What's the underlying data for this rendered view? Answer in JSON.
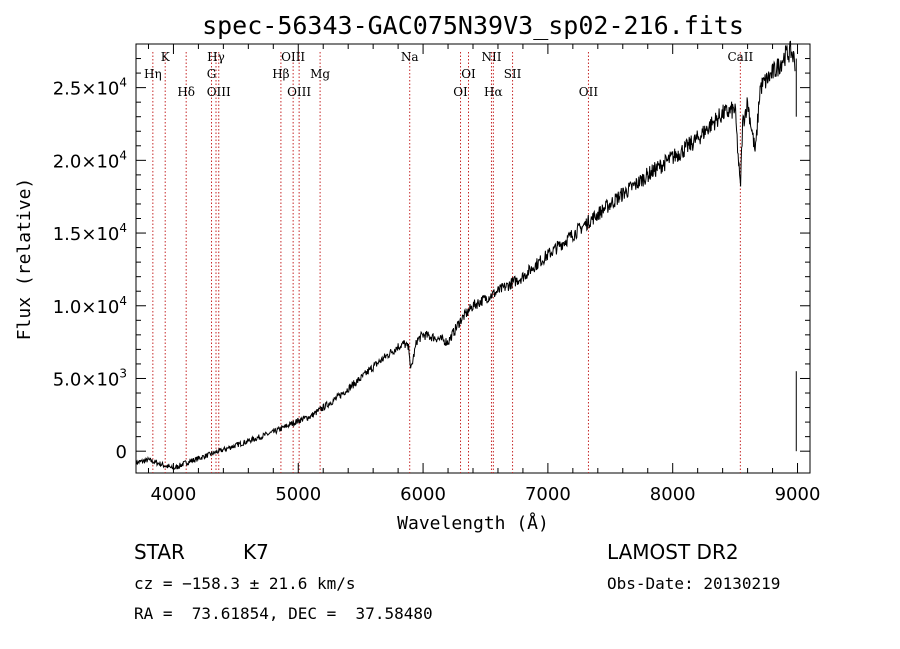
{
  "chart_data": {
    "type": "line",
    "title": "spec-56343-GAC075N39V3_sp02-216.fits",
    "xlabel": "Wavelength (Å)",
    "ylabel": "Flux (relative)",
    "xlim": [
      3700,
      9100
    ],
    "ylim": [
      -1500,
      28000
    ],
    "xticks": [
      4000,
      5000,
      6000,
      7000,
      8000,
      9000
    ],
    "xtick_labels": [
      "4000",
      "5000",
      "6000",
      "7000",
      "8000",
      "9000"
    ],
    "yticks": [
      {
        "value": 0,
        "mant": "0",
        "exp": ""
      },
      {
        "value": 5000,
        "mant": "5.0×10",
        "exp": "3"
      },
      {
        "value": 10000,
        "mant": "1.0×10",
        "exp": "4"
      },
      {
        "value": 15000,
        "mant": "1.5×10",
        "exp": "4"
      },
      {
        "value": 20000,
        "mant": "2.0×10",
        "exp": "4"
      },
      {
        "value": 25000,
        "mant": "2.5×10",
        "exp": "4"
      }
    ],
    "series": [
      {
        "x": [
          3700,
          3800,
          3900,
          4000,
          4100,
          4200,
          4300,
          4400,
          4500,
          4600,
          4700,
          4800,
          4900,
          5000,
          5100,
          5200,
          5300,
          5400,
          5500,
          5600,
          5700,
          5800,
          5850,
          5890,
          5900,
          5950,
          6000,
          6100,
          6200,
          6300,
          6400,
          6500,
          6600,
          6700,
          6800,
          6900,
          7000,
          7100,
          7200,
          7300,
          7400,
          7500,
          7600,
          7700,
          7800,
          7900,
          8000,
          8100,
          8200,
          8300,
          8400,
          8500,
          8542,
          8560,
          8600,
          8662,
          8700,
          8800,
          8850,
          8900,
          8950,
          8980
        ],
        "y": [
          -800,
          -600,
          -900,
          -1200,
          -800,
          -500,
          -200,
          100,
          400,
          700,
          1000,
          1300,
          1700,
          2100,
          2400,
          3000,
          3600,
          4300,
          5000,
          5800,
          6500,
          7200,
          7400,
          7000,
          5500,
          7600,
          8000,
          7800,
          7500,
          9000,
          10000,
          10500,
          11000,
          11500,
          12000,
          12800,
          13500,
          14200,
          14900,
          15600,
          16300,
          17000,
          17700,
          18300,
          19000,
          19600,
          20200,
          20800,
          21500,
          22400,
          23200,
          23500,
          18000,
          22500,
          24000,
          20500,
          25000,
          26000,
          26500,
          27200,
          27500,
          26800
        ]
      }
    ],
    "lines": [
      {
        "name": "Hη",
        "x": 3835,
        "row": 2
      },
      {
        "name": "K",
        "x": 3934,
        "row": 1
      },
      {
        "name": "Hδ",
        "x": 4102,
        "row": 3
      },
      {
        "name": "Hγ",
        "x": 4341,
        "row": 1
      },
      {
        "name": "G",
        "x": 4305,
        "row": 2
      },
      {
        "name": "OIII",
        "x": 4363,
        "row": 3
      },
      {
        "name": "Hβ",
        "x": 4861,
        "row": 2
      },
      {
        "name": "OIII",
        "x": 4959,
        "row": 1
      },
      {
        "name": "OIII",
        "x": 5007,
        "row": 3
      },
      {
        "name": "Mg",
        "x": 5175,
        "row": 2
      },
      {
        "name": "Na",
        "x": 5893,
        "row": 1
      },
      {
        "name": "OI",
        "x": 6300,
        "row": 3
      },
      {
        "name": "OI",
        "x": 6364,
        "row": 2
      },
      {
        "name": "NII",
        "x": 6548,
        "row": 1
      },
      {
        "name": "Hα",
        "x": 6563,
        "row": 3
      },
      {
        "name": "SII",
        "x": 6717,
        "row": 2
      },
      {
        "name": "OII",
        "x": 7325,
        "row": 3
      },
      {
        "name": "CaII",
        "x": 8542,
        "row": 1
      }
    ]
  },
  "info": {
    "class": "STAR",
    "subclass": "K7",
    "survey": "LAMOST DR2",
    "cz": "cz = −158.3 ± 21.6 km/s",
    "obs_date": "Obs-Date: 20130219",
    "coords": "RA =  73.61854, DEC =  37.58480"
  }
}
